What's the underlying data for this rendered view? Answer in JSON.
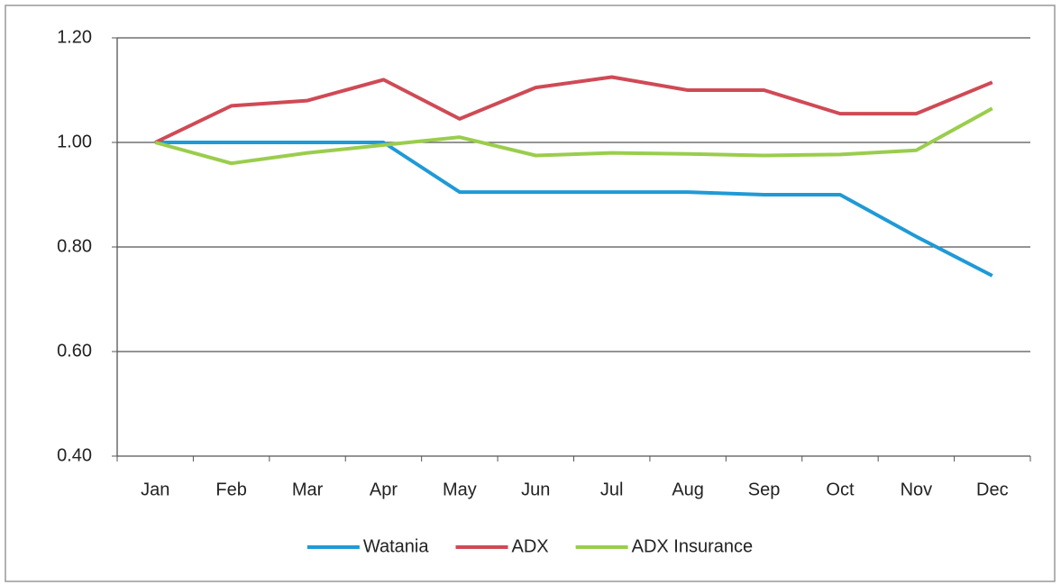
{
  "chart_data": {
    "type": "line",
    "categories": [
      "Jan",
      "Feb",
      "Mar",
      "Apr",
      "May",
      "Jun",
      "Jul",
      "Aug",
      "Sep",
      "Oct",
      "Nov",
      "Dec"
    ],
    "series": [
      {
        "name": "Watania",
        "color": "#1f9ad6",
        "values": [
          1.0,
          1.0,
          1.0,
          1.0,
          0.905,
          0.905,
          0.905,
          0.905,
          0.9,
          0.9,
          0.82,
          0.745
        ]
      },
      {
        "name": "ADX",
        "color": "#cf4a55",
        "values": [
          1.0,
          1.07,
          1.08,
          1.12,
          1.045,
          1.105,
          1.125,
          1.1,
          1.1,
          1.055,
          1.055,
          1.115
        ]
      },
      {
        "name": "ADX Insurance",
        "color": "#9acd4c",
        "values": [
          1.0,
          0.96,
          0.98,
          0.995,
          1.01,
          0.975,
          0.98,
          0.978,
          0.975,
          0.977,
          0.985,
          1.065
        ]
      }
    ],
    "ylim": [
      0.4,
      1.2
    ],
    "yticks": [
      {
        "value": 0.4,
        "label": "0.40"
      },
      {
        "value": 0.6,
        "label": "0.60"
      },
      {
        "value": 0.8,
        "label": "0.80"
      },
      {
        "value": 1.0,
        "label": "1.00"
      },
      {
        "value": 1.2,
        "label": "1.20"
      }
    ],
    "grid": true,
    "legend": "bottom"
  }
}
